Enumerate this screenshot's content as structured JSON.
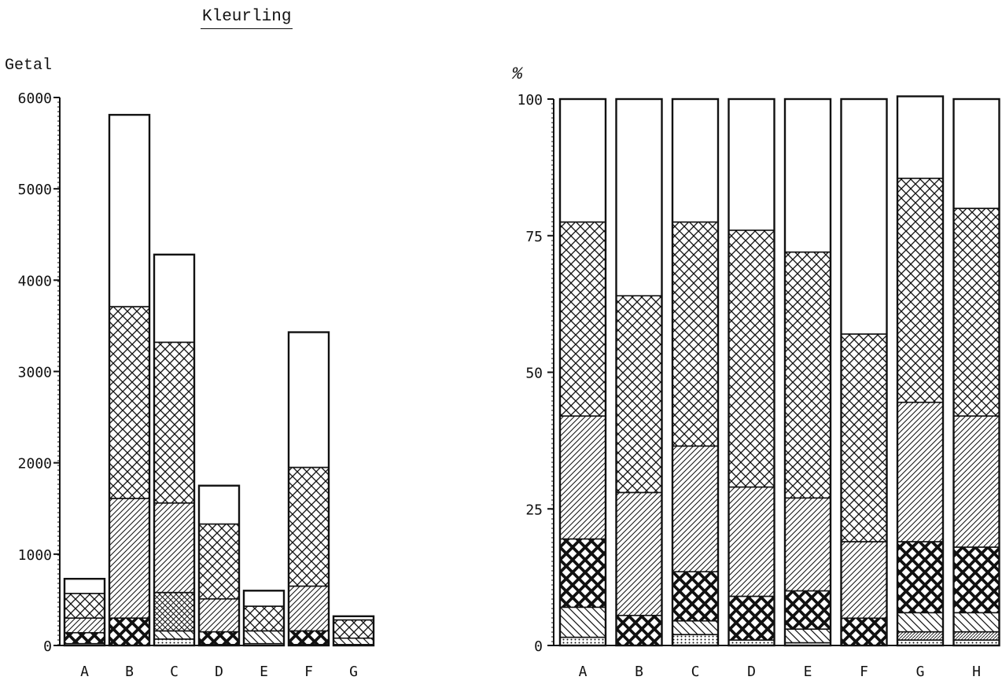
{
  "title": "Kleurling",
  "chart_data": [
    {
      "type": "bar",
      "stacked": true,
      "ylabel": "Getal",
      "ylim": [
        0,
        6000
      ],
      "yticks": [
        0,
        1000,
        2000,
        3000,
        4000,
        5000,
        6000
      ],
      "categories": [
        "A",
        "B",
        "C",
        "D",
        "E",
        "F",
        "G"
      ],
      "series": [
        {
          "pattern": "dots",
          "values": [
            20,
            0,
            70,
            10,
            20,
            10,
            10
          ]
        },
        {
          "pattern": "bold-crosshatch",
          "values": [
            120,
            300,
            0,
            140,
            0,
            150,
            0
          ]
        },
        {
          "pattern": "back-hatch",
          "values": [
            0,
            0,
            90,
            0,
            140,
            0,
            70
          ]
        },
        {
          "pattern": "crosshatch-small",
          "values": [
            0,
            0,
            420,
            0,
            0,
            0,
            0
          ]
        },
        {
          "pattern": "diagonal-hatch",
          "values": [
            160,
            1310,
            980,
            360,
            0,
            490,
            0
          ]
        },
        {
          "pattern": "crosshatch-fine",
          "values": [
            270,
            2100,
            1760,
            820,
            270,
            1300,
            200
          ]
        },
        {
          "pattern": "empty",
          "values": [
            160,
            2100,
            960,
            420,
            170,
            1480,
            40
          ]
        }
      ],
      "grid": false,
      "legend": "none"
    },
    {
      "type": "bar",
      "stacked": true,
      "ylabel": "%",
      "ylim": [
        0,
        100
      ],
      "yticks": [
        0,
        25,
        50,
        75,
        100
      ],
      "categories": [
        "A",
        "B",
        "C",
        "D",
        "E",
        "F",
        "G",
        "H"
      ],
      "series": [
        {
          "pattern": "dots",
          "values": [
            1.5,
            0,
            2,
            1,
            0.5,
            0,
            1,
            1
          ]
        },
        {
          "pattern": "small-hatch",
          "values": [
            0,
            0,
            0,
            0,
            0,
            0,
            1.5,
            1.5
          ]
        },
        {
          "pattern": "back-hatch",
          "values": [
            5.5,
            0,
            2.5,
            0,
            2.5,
            0,
            3.5,
            3.5
          ]
        },
        {
          "pattern": "bold-crosshatch",
          "values": [
            12.5,
            5.5,
            9,
            8,
            7,
            5,
            13,
            12
          ]
        },
        {
          "pattern": "diagonal-hatch",
          "values": [
            22.5,
            22.5,
            23,
            20,
            17,
            14,
            25.5,
            24
          ]
        },
        {
          "pattern": "crosshatch-fine",
          "values": [
            35.5,
            36,
            41,
            47,
            45,
            38,
            41,
            38
          ]
        },
        {
          "pattern": "empty",
          "values": [
            22.5,
            36,
            22.5,
            24,
            28,
            43,
            15,
            20
          ]
        }
      ],
      "grid": false,
      "legend": "none"
    }
  ]
}
